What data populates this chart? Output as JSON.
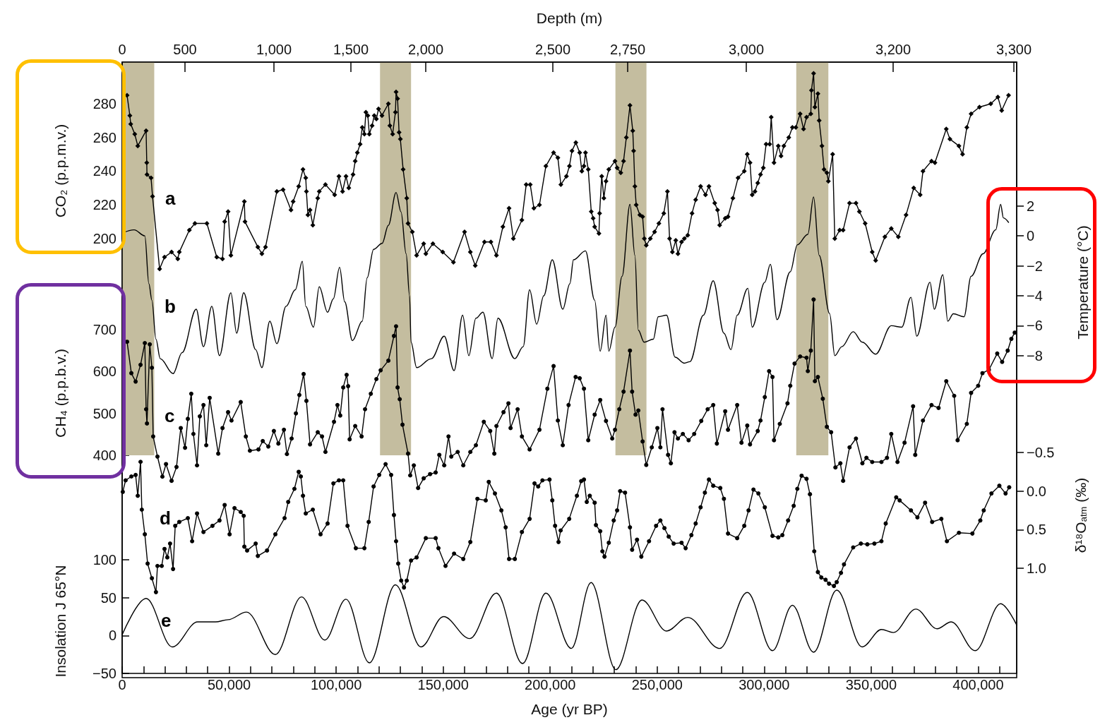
{
  "chart_data": [
    {
      "type": "line",
      "x2label": "Depth (m)",
      "ylabel": "CO₂ (p.p.m.v.)",
      "y2label": "Temperature (°C)",
      "y3label": "CH₄ (p.p.b.v.)",
      "tick_labels": "y",
      "annotations": [
        "0",
        "500",
        "1,000",
        "1,500",
        "2,000",
        "2,500",
        "2,750",
        "3,000",
        "3,200",
        "3,300"
      ],
      "xlim": [
        0,
        418000
      ],
      "ylim": [
        -60.5,
        304.7
      ],
      "yticks": [
        200,
        220,
        240,
        260,
        280
      ],
      "y2lim": [
        -29.5,
        11.6
      ],
      "y2ticks": [
        2,
        0,
        {
          "value": -2,
          "label": "−2"
        },
        {
          "value": -4,
          "label": "−4"
        },
        {
          "value": -6,
          "label": "−6"
        },
        {
          "value": -8,
          "label": "−8"
        }
      ],
      "y3lim": [
        -130.9,
        1338.8
      ],
      "y3ticks": [
        400,
        500,
        600,
        700
      ],
      "bands": [
        {
          "axis": "x",
          "from": 0,
          "to": 15000,
          "color": "#c4bd9f"
        },
        {
          "axis": "x",
          "from": 120500,
          "to": 135000,
          "color": "#c4bd9f"
        },
        {
          "axis": "x",
          "from": 230500,
          "to": 245000,
          "color": "#c4bd9f"
        },
        {
          "axis": "x",
          "from": 315000,
          "to": 330000,
          "color": "#c4bd9f"
        }
      ],
      "series": [
        {
          "name": "a",
          "color": "#000000",
          "marker": "diamond",
          "axis": "y",
          "x": [
            2300,
            3600,
            4000,
            5900,
            7300,
            11200,
            11500,
            11600,
            13500,
            14200,
            17500,
            19800,
            23100,
            26000,
            26700,
            31400,
            34000,
            39600,
            44200,
            46900,
            47900,
            49500,
            50800,
            57100,
            57400,
            63400,
            65300,
            67000,
            72300,
            75200,
            78900,
            79900,
            82500,
            84500,
            85800,
            86100,
            86800,
            87800,
            89100,
            91400,
            92100,
            95000,
            99300,
            101300,
            103000,
            104600,
            105900,
            107900,
            108900,
            109900,
            111200,
            112200,
            113200,
            113900,
            114800,
            115500,
            116800,
            117800,
            118800,
            119800,
            121400,
            124400,
            125100,
            126400,
            127700,
            128000,
            128700,
            129400,
            130000,
            131300,
            133000,
            133600,
            135600,
            137600,
            140900,
            141900,
            145200,
            149800,
            154800,
            160000,
            162700,
            165000,
            169300,
            172300,
            174900,
            177900,
            180800,
            182800,
            186800,
            188800,
            190700,
            192400,
            195000,
            198000,
            201600,
            203600,
            205000,
            207600,
            209000,
            210200,
            212000,
            213800,
            214800,
            215800,
            216500,
            217800,
            219200,
            220100,
            220800,
            222800,
            223100,
            224100,
            225100,
            226100,
            227400,
            230300,
            231300,
            233000,
            234300,
            235600,
            237300,
            238600,
            239000,
            239600,
            240200,
            241900,
            243200,
            244000,
            244900,
            246800,
            248800,
            250800,
            253100,
            254800,
            255800,
            257100,
            258700,
            259700,
            261400,
            262700,
            264300,
            266300,
            268000,
            270300,
            272600,
            274200,
            276900,
            278200,
            279200,
            281800,
            283100,
            285400,
            287800,
            290700,
            292100,
            293400,
            294400,
            295700,
            297000,
            298300,
            299600,
            300900,
            302600,
            303300,
            304600,
            306600,
            307900,
            309200,
            311500,
            313200,
            314800,
            316800,
            318400,
            319800,
            321800,
            322100,
            323100,
            323700,
            325100,
            325700,
            327000,
            328000,
            329300,
            330000,
            332000,
            333000,
            335300,
            336900,
            339900,
            342900,
            344500,
            347200,
            350500,
            352100,
            356400,
            359400,
            362700,
            366300,
            369900,
            372900,
            374200,
            378200,
            379800,
            385100,
            386800,
            391000,
            392700,
            394700,
            396700,
            400600,
            405900,
            409200,
            411000,
            414200
          ],
          "values": [
            285,
            273,
            268,
            262,
            255,
            264,
            245,
            238,
            236,
            225,
            182,
            189,
            192,
            188,
            192,
            205,
            209,
            209,
            189,
            188,
            210,
            216,
            190,
            222,
            210,
            195,
            191,
            195,
            228,
            229,
            217,
            222,
            231,
            241,
            236,
            228,
            214,
            217,
            208,
            224,
            228,
            232,
            226,
            237,
            228,
            237,
            230,
            238,
            246,
            251,
            256,
            266,
            262,
            275,
            273,
            262,
            267,
            273,
            271,
            277,
            273,
            280,
            267,
            262,
            275,
            287,
            283,
            263,
            259,
            241,
            224,
            209,
            204,
            190,
            197,
            191,
            197,
            192,
            186,
            204,
            192,
            184,
            198,
            198,
            190,
            207,
            218,
            200,
            211,
            232,
            232,
            218,
            220,
            243,
            251,
            248,
            232,
            237,
            243,
            252,
            257,
            251,
            240,
            243,
            251,
            241,
            216,
            212,
            207,
            203,
            215,
            237,
            224,
            234,
            241,
            246,
            242,
            239,
            246,
            260,
            279,
            264,
            252,
            231,
            220,
            214,
            213,
            200,
            196,
            200,
            204,
            209,
            215,
            228,
            200,
            192,
            199,
            191,
            198,
            200,
            202,
            215,
            223,
            231,
            226,
            231,
            221,
            217,
            208,
            212,
            213,
            224,
            236,
            240,
            250,
            245,
            226,
            228,
            233,
            238,
            242,
            256,
            256,
            272,
            245,
            255,
            249,
            255,
            260,
            266,
            266,
            274,
            265,
            272,
            274,
            288,
            298,
            278,
            286,
            270,
            255,
            241,
            239,
            234,
            250,
            200,
            205,
            205,
            221,
            221,
            216,
            209,
            192,
            187,
            201,
            206,
            201,
            214,
            230,
            226,
            240,
            246,
            245,
            265,
            259,
            255,
            250,
            266,
            274,
            278,
            280,
            284,
            276,
            285
          ]
        },
        {
          "name": "b",
          "color": "#000000",
          "marker": "none",
          "axis": "y2",
          "x": [
            300,
            5600,
            10600,
            12500,
            13900,
            15800,
            17800,
            23800,
            28000,
            34600,
            38000,
            41900,
            45500,
            50800,
            53500,
            56800,
            62400,
            65300,
            69000,
            72300,
            76600,
            80900,
            84200,
            85800,
            89400,
            92100,
            96000,
            98700,
            101600,
            104000,
            107600,
            112200,
            114500,
            117500,
            121500,
            124400,
            128000,
            130300,
            132700,
            134300,
            135000,
            137600,
            144500,
            150500,
            155100,
            159100,
            162000,
            165300,
            168600,
            172900,
            175600,
            183500,
            187400,
            190400,
            193700,
            197000,
            201000,
            205900,
            209200,
            210900,
            216500,
            220800,
            223400,
            226100,
            227400,
            230300,
            233600,
            237300,
            239600,
            241200,
            243900,
            248200,
            250500,
            254400,
            258400,
            262700,
            265300,
            271600,
            276200,
            281200,
            284500,
            287400,
            292400,
            294400,
            300300,
            302900,
            306000,
            312200,
            315500,
            320400,
            323100,
            325700,
            330600,
            333000,
            336300,
            341600,
            345900,
            352100,
            359400,
            364300,
            368600,
            371300,
            377500,
            379500,
            383500,
            385800,
            388400,
            393400,
            396700,
            402300,
            408200,
            410500,
            411800,
            414200
          ],
          "values": [
            0.2,
            0.4,
            0.0,
            -3.2,
            -4.3,
            -6.9,
            -8.2,
            -9.2,
            -7.8,
            -4.9,
            -7.4,
            -4.7,
            -8.0,
            -3.8,
            -6.5,
            -3.8,
            -7.6,
            -8.8,
            -5.7,
            -7.2,
            -4.7,
            -3.6,
            -1.7,
            -4.7,
            -6.1,
            -3.4,
            -5.1,
            -4.2,
            -2.1,
            -4.4,
            -7.0,
            -5.7,
            -2.8,
            -0.9,
            -0.5,
            0.7,
            2.9,
            1.6,
            -1.2,
            -4.0,
            -7.1,
            -8.8,
            -8.2,
            -6.7,
            -9.0,
            -5.3,
            -8.0,
            -5.5,
            -5.1,
            -8.2,
            -5.5,
            -8.2,
            -7.4,
            -3.6,
            -5.9,
            -4.0,
            -1.6,
            -4.9,
            -3.2,
            -1.6,
            -1.0,
            -4.3,
            -7.7,
            -5.3,
            -7.7,
            -6.1,
            -2.7,
            2.1,
            -1.3,
            -6.3,
            -7.1,
            -6.9,
            -5.4,
            -5.3,
            -8.1,
            -8.5,
            -8.4,
            -5.3,
            -3.0,
            -6.5,
            -7.6,
            -5.3,
            -3.5,
            -6.1,
            -3.1,
            -1.9,
            -5.6,
            -2.4,
            -0.6,
            0.1,
            2.6,
            -1.3,
            -5.2,
            -8.0,
            -7.4,
            -6.4,
            -7.1,
            -7.9,
            -6.0,
            -6.1,
            -4.1,
            -6.7,
            -3.1,
            -4.9,
            -2.6,
            -5.7,
            -5.2,
            -5.4,
            -2.7,
            -1.2,
            0.4,
            2.1,
            1.2,
            0.9
          ]
        },
        {
          "name": "c",
          "color": "#000000",
          "marker": "circle",
          "axis": "y3",
          "x": [
            2300,
            4300,
            6300,
            8600,
            10600,
            11200,
            11600,
            12900,
            13900,
            14500,
            16500,
            18800,
            20500,
            23100,
            25400,
            27400,
            29400,
            30700,
            32300,
            33300,
            35000,
            36300,
            38000,
            39300,
            40900,
            44900,
            46900,
            49500,
            51100,
            55400,
            57800,
            59700,
            63700,
            65700,
            68300,
            70900,
            73000,
            75600,
            77000,
            79200,
            81200,
            82800,
            84800,
            86100,
            87800,
            91400,
            93400,
            95000,
            99000,
            100600,
            101900,
            103300,
            104900,
            105600,
            106300,
            108900,
            111900,
            113500,
            116200,
            118800,
            120800,
            124400,
            127000,
            128000,
            128700,
            129700,
            131000,
            133600,
            134600,
            136300,
            138300,
            140900,
            143900,
            146500,
            148200,
            150500,
            152500,
            153800,
            156800,
            159400,
            162700,
            165300,
            169000,
            172000,
            173900,
            174900,
            178200,
            180500,
            181500,
            184800,
            186800,
            190400,
            195000,
            198700,
            201600,
            203600,
            205900,
            208600,
            211900,
            213800,
            215800,
            217800,
            220800,
            223400,
            226100,
            229000,
            230300,
            232300,
            234300,
            237300,
            238300,
            239900,
            241200,
            243200,
            244900,
            247500,
            250100,
            251500,
            252500,
            255100,
            256400,
            258100,
            259700,
            262000,
            264700,
            267300,
            270600,
            273600,
            276200,
            277900,
            281800,
            283100,
            287400,
            289400,
            292100,
            293400,
            297000,
            298300,
            300300,
            302300,
            303900,
            304600,
            307300,
            310900,
            312200,
            314200,
            316800,
            319800,
            320400,
            321800,
            323100,
            323700,
            325100,
            327400,
            329300,
            331300,
            333300,
            335600,
            336900,
            339900,
            342900,
            345900,
            347800,
            350500,
            354800,
            357400,
            359400,
            362300,
            365600,
            369600,
            370600,
            374200,
            378200,
            381500,
            385100,
            388800,
            390400,
            394700,
            396700,
            400000,
            402000,
            405000,
            408900,
            411200,
            413800,
            415500,
            417100
          ],
          "values": [
            671,
            596,
            576,
            616,
            668,
            510,
            476,
            665,
            609,
            445,
            397,
            349,
            379,
            339,
            372,
            465,
            418,
            487,
            547,
            451,
            376,
            493,
            520,
            424,
            537,
            404,
            465,
            503,
            483,
            527,
            445,
            411,
            414,
            434,
            421,
            458,
            428,
            461,
            403,
            440,
            500,
            544,
            594,
            530,
            426,
            455,
            445,
            408,
            480,
            520,
            495,
            562,
            592,
            565,
            438,
            470,
            445,
            510,
            547,
            582,
            603,
            626,
            685,
            708,
            562,
            534,
            473,
            404,
            352,
            376,
            322,
            345,
            355,
            359,
            401,
            376,
            445,
            397,
            408,
            376,
            408,
            424,
            480,
            458,
            404,
            470,
            503,
            524,
            465,
            510,
            445,
            414,
            461,
            559,
            613,
            483,
            424,
            520,
            587,
            584,
            559,
            436,
            497,
            532,
            482,
            440,
            461,
            510,
            552,
            650,
            552,
            497,
            507,
            433,
            377,
            419,
            465,
            419,
            510,
            401,
            381,
            455,
            440,
            451,
            436,
            451,
            482,
            510,
            520,
            428,
            505,
            461,
            520,
            430,
            471,
            426,
            458,
            483,
            539,
            601,
            587,
            436,
            475,
            524,
            566,
            619,
            636,
            633,
            601,
            650,
            772,
            577,
            587,
            535,
            468,
            455,
            371,
            381,
            339,
            419,
            440,
            381,
            394,
            384,
            384,
            394,
            451,
            384,
            430,
            517,
            401,
            483,
            520,
            513,
            577,
            542,
            436,
            475,
            549,
            566,
            596,
            604,
            643,
            623,
            650,
            678,
            693
          ]
        }
      ]
    },
    {
      "type": "line",
      "xlabel": "Age (yr BP)",
      "ylabel": "Insolation J 65°N",
      "y2label": "δ¹⁸O$_{atm}$ (‰)",
      "xlim": [
        0,
        418000
      ],
      "xticks": [
        0,
        {
          "value": 10000,
          "label": null
        },
        {
          "value": 20000,
          "label": null
        },
        {
          "value": 30000,
          "label": null
        },
        {
          "value": 40000,
          "label": null
        },
        {
          "value": 50000,
          "label": "50,000"
        },
        {
          "value": 60000,
          "label": null
        },
        {
          "value": 70000,
          "label": null
        },
        {
          "value": 80000,
          "label": null
        },
        {
          "value": 90000,
          "label": null
        },
        {
          "value": 100000,
          "label": "100,000"
        },
        {
          "value": 110000,
          "label": null
        },
        {
          "value": 120000,
          "label": null
        },
        {
          "value": 130000,
          "label": null
        },
        {
          "value": 140000,
          "label": null
        },
        {
          "value": 150000,
          "label": "150,000"
        },
        {
          "value": 160000,
          "label": null
        },
        {
          "value": 170000,
          "label": null
        },
        {
          "value": 180000,
          "label": null
        },
        {
          "value": 190000,
          "label": null
        },
        {
          "value": 200000,
          "label": "200,000"
        },
        {
          "value": 210000,
          "label": null
        },
        {
          "value": 220000,
          "label": null
        },
        {
          "value": 230000,
          "label": null
        },
        {
          "value": 240000,
          "label": null
        },
        {
          "value": 250000,
          "label": "250,000"
        },
        {
          "value": 260000,
          "label": null
        },
        {
          "value": 270000,
          "label": null
        },
        {
          "value": 280000,
          "label": null
        },
        {
          "value": 290000,
          "label": null
        },
        {
          "value": 300000,
          "label": "300,000"
        },
        {
          "value": 310000,
          "label": null
        },
        {
          "value": 320000,
          "label": null
        },
        {
          "value": 330000,
          "label": null
        },
        {
          "value": 340000,
          "label": null
        },
        {
          "value": 350000,
          "label": "350,000"
        },
        {
          "value": 360000,
          "label": null
        },
        {
          "value": 370000,
          "label": null
        },
        {
          "value": 380000,
          "label": null
        },
        {
          "value": 390000,
          "label": null
        },
        {
          "value": 400000,
          "label": "400,000"
        },
        {
          "value": 410000,
          "label": null
        }
      ],
      "ylim": [
        -50,
        757.4
      ],
      "yticks": [
        {
          "value": -50,
          "label": "−50"
        },
        0,
        50,
        100
      ],
      "y2lim": [
        2.364,
        -5.564
      ],
      "y2ticks": [
        {
          "value": -0.5,
          "label": "−0.5"
        },
        {
          "value": 0,
          "label": "0.0"
        },
        0.5,
        {
          "value": 1,
          "label": "1.0"
        }
      ],
      "series": [
        {
          "name": "d",
          "color": "#000000",
          "marker": "circle",
          "axis": "y2",
          "x": [
            300,
            1600,
            4300,
            6300,
            7300,
            8600,
            9200,
            10600,
            11900,
            13900,
            15800,
            16500,
            18500,
            19800,
            21100,
            22400,
            23800,
            24800,
            26700,
            30700,
            32700,
            35000,
            38000,
            42200,
            45500,
            47900,
            50200,
            52500,
            55400,
            56800,
            57100,
            58400,
            62400,
            63400,
            67700,
            71600,
            75900,
            77600,
            80500,
            82500,
            83500,
            84500,
            85800,
            89100,
            92700,
            96000,
            98700,
            101300,
            103300,
            105300,
            109200,
            113200,
            115200,
            117500,
            120100,
            123100,
            125700,
            127000,
            128000,
            129000,
            130400,
            131700,
            133000,
            135000,
            137600,
            141900,
            146500,
            147800,
            151100,
            155100,
            159400,
            162700,
            166000,
            169900,
            171300,
            174200,
            177200,
            179200,
            180800,
            183500,
            186800,
            190400,
            192700,
            194400,
            196400,
            199700,
            201000,
            202300,
            203900,
            204900,
            208900,
            212500,
            214500,
            215800,
            217100,
            218500,
            220800,
            221400,
            223400,
            224400,
            225400,
            227400,
            229700,
            231300,
            232700,
            235000,
            237300,
            238300,
            240600,
            242600,
            246200,
            249500,
            251500,
            253400,
            255400,
            257700,
            261400,
            263300,
            266000,
            268000,
            270300,
            272300,
            274200,
            276200,
            279500,
            281200,
            283100,
            287400,
            290700,
            292700,
            295000,
            297300,
            300300,
            303900,
            306600,
            308500,
            311200,
            313800,
            315500,
            317500,
            319800,
            321400,
            323400,
            325100,
            326700,
            328700,
            330300,
            332600,
            333900,
            335900,
            337300,
            341600,
            345200,
            348200,
            351500,
            354800,
            356800,
            361700,
            363300,
            368600,
            371600,
            375200,
            378500,
            382800,
            385400,
            391000,
            397300,
            401000,
            402600,
            406200,
            409900,
            412800,
            414500
          ],
          "values": [
            0.01,
            -0.14,
            -0.19,
            -0.21,
            0.06,
            -0.38,
            0.24,
            0.56,
            0.94,
            1.13,
            1.31,
            0.97,
            0.97,
            0.75,
            0.86,
            0.68,
            1.01,
            0.45,
            0.4,
            0.35,
            0.65,
            0.29,
            0.53,
            0.45,
            0.38,
            0.18,
            0.56,
            0.22,
            0.27,
            0.32,
            0.72,
            0.77,
            0.68,
            0.84,
            0.77,
            0.56,
            0.35,
            0.14,
            -0.03,
            -0.25,
            -0.19,
            0.06,
            0.29,
            0.24,
            0.56,
            0.42,
            -0.1,
            -0.14,
            -0.14,
            0.45,
            0.74,
            0.74,
            0.4,
            -0.06,
            -0.21,
            -0.35,
            -0.21,
            0.31,
            0.65,
            0.94,
            1.16,
            1.25,
            1.16,
            0.9,
            0.86,
            0.61,
            0.61,
            0.74,
            0.97,
            0.81,
            0.88,
            0.66,
            0.1,
            0.12,
            -0.12,
            0.03,
            0.25,
            0.47,
            0.88,
            0.88,
            0.53,
            0.36,
            -0.1,
            -0.06,
            -0.14,
            -0.15,
            0.12,
            0.45,
            0.66,
            0.51,
            0.36,
            0.06,
            -0.13,
            -0.15,
            0.14,
            0.06,
            0.15,
            0.44,
            0.52,
            0.78,
            0.85,
            0.67,
            0.38,
            0.25,
            0.0,
            0.02,
            0.47,
            0.76,
            0.63,
            0.85,
            0.65,
            0.45,
            0.38,
            0.48,
            0.59,
            0.68,
            0.67,
            0.74,
            0.57,
            0.42,
            0.21,
            0.02,
            -0.15,
            -0.07,
            -0.04,
            0.1,
            0.55,
            0.61,
            0.45,
            0.25,
            -0.02,
            0.03,
            0.21,
            0.58,
            0.6,
            0.57,
            0.38,
            0.19,
            -0.03,
            -0.2,
            -0.16,
            0.04,
            0.78,
            1.05,
            1.12,
            1.15,
            1.2,
            1.23,
            1.18,
            1.06,
            0.95,
            0.73,
            0.68,
            0.69,
            0.68,
            0.65,
            0.42,
            0.08,
            0.12,
            0.25,
            0.34,
            0.15,
            0.4,
            0.36,
            0.65,
            0.54,
            0.55,
            0.38,
            0.25,
            0.03,
            -0.07,
            0.03,
            -0.05
          ]
        },
        {
          "name": "e",
          "color": "#000000",
          "marker": "none",
          "axis": "y",
          "x": [
            0,
            11200,
            23400,
            35300,
            43600,
            49500,
            58100,
            71600,
            83800,
            94700,
            104600,
            115500,
            127700,
            139600,
            150200,
            162400,
            174900,
            187100,
            198000,
            209900,
            219100,
            230700,
            242900,
            254400,
            264300,
            279200,
            292100,
            303900,
            313200,
            323100,
            333900,
            345800,
            354800,
            360400,
            370900,
            380800,
            387400,
            398600,
            410500,
            418000
          ],
          "values": [
            1,
            49,
            -15,
            18,
            18,
            21,
            31,
            -25,
            51,
            -6,
            48,
            -36,
            67,
            -15,
            25,
            -4,
            56,
            -37,
            56,
            -17,
            70,
            -45,
            47,
            6,
            24,
            -17,
            57,
            -20,
            40,
            -22,
            60,
            -15,
            8,
            4,
            35,
            9,
            18,
            -20,
            42,
            14
          ]
        }
      ]
    }
  ]
}
